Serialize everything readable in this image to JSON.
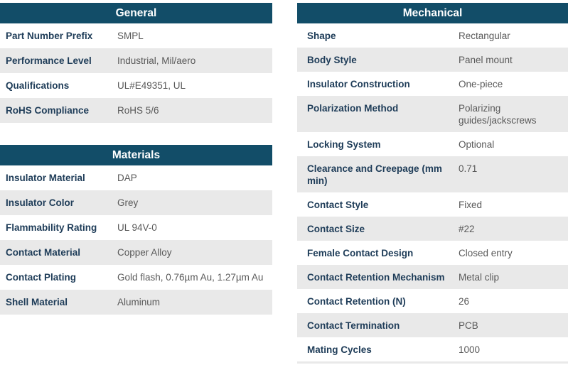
{
  "colors": {
    "header_bg": "#124d68",
    "header_text": "#ffffff",
    "label_text": "#1e3c58",
    "value_text": "#595959",
    "row_bg": "#ffffff",
    "row_alt_bg": "#e9e9e9"
  },
  "tables": [
    {
      "id": "general",
      "title": "General",
      "rows": [
        {
          "label": "Part Number Prefix",
          "value": "SMPL"
        },
        {
          "label": "Performance Level",
          "value": "Industrial, Mil/aero"
        },
        {
          "label": "Qualifications",
          "value": "UL#E49351, UL"
        },
        {
          "label": "RoHS Compliance",
          "value": "RoHS 5/6"
        }
      ]
    },
    {
      "id": "materials",
      "title": "Materials",
      "rows": [
        {
          "label": "Insulator Material",
          "value": "DAP"
        },
        {
          "label": "Insulator Color",
          "value": "Grey"
        },
        {
          "label": "Flammability Rating",
          "value": "UL 94V-0"
        },
        {
          "label": "Contact Material",
          "value": "Copper Alloy"
        },
        {
          "label": "Contact Plating",
          "value": "Gold flash, 0.76µm Au, 1.27µm Au"
        },
        {
          "label": "Shell Material",
          "value": "Aluminum"
        }
      ]
    },
    {
      "id": "mechanical",
      "title": "Mechanical",
      "rows": [
        {
          "label": "Shape",
          "value": "Rectangular"
        },
        {
          "label": "Body Style",
          "value": "Panel mount"
        },
        {
          "label": "Insulator Construction",
          "value": "One-piece"
        },
        {
          "label": "Polarization Method",
          "value": "Polarizing guides/jackscrews"
        },
        {
          "label": "Locking System",
          "value": "Optional"
        },
        {
          "label": "Clearance and Creepage (mm min)",
          "value": "0.71"
        },
        {
          "label": "Contact Style",
          "value": "Fixed"
        },
        {
          "label": "Contact Size",
          "value": "#22"
        },
        {
          "label": "Female Contact Design",
          "value": "Closed entry"
        },
        {
          "label": "Contact Retention Mechanism",
          "value": "Metal clip"
        },
        {
          "label": "Contact Retention (N)",
          "value": "26"
        },
        {
          "label": "Contact Termination",
          "value": "PCB"
        },
        {
          "label": "Mating Cycles",
          "value": "1000"
        }
      ]
    }
  ]
}
